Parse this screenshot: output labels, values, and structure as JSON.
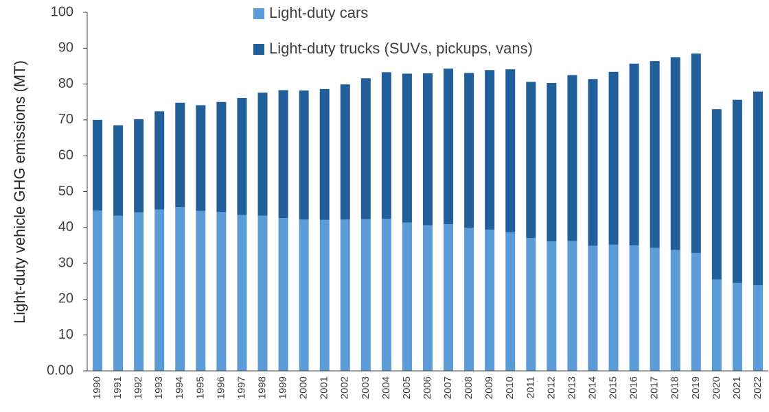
{
  "chart_data": {
    "type": "stacked_bar",
    "y_label": "Light-duty vehicle GHG emissions (MT)",
    "categories": [
      "1990",
      "1991",
      "1992",
      "1993",
      "1994",
      "1995",
      "1996",
      "1997",
      "1998",
      "1999",
      "2000",
      "2001",
      "2002",
      "2003",
      "2004",
      "2005",
      "2006",
      "2007",
      "2008",
      "2009",
      "2010",
      "2011",
      "2012",
      "2013",
      "2014",
      "2015",
      "2016",
      "2017",
      "2018",
      "2019",
      "2020",
      "2021",
      "2022"
    ],
    "series": [
      {
        "name": "Light-duty cars",
        "color": "#5b9bd8",
        "values": [
          44.7,
          43.3,
          44.2,
          45.0,
          45.7,
          44.6,
          44.3,
          43.5,
          43.3,
          42.6,
          42.2,
          42.1,
          42.2,
          42.3,
          42.4,
          41.4,
          40.6,
          40.9,
          39.9,
          39.4,
          38.6,
          37.1,
          36.1,
          36.2,
          34.9,
          35.2,
          35.0,
          34.3,
          33.7,
          32.9,
          25.5,
          24.5,
          23.9
        ]
      },
      {
        "name": "Light-duty trucks (SUVs, pickups, vans)",
        "color": "#215f9a",
        "values": [
          25.3,
          25.2,
          26.0,
          27.4,
          29.1,
          29.5,
          30.7,
          32.6,
          34.3,
          35.7,
          36.0,
          36.5,
          37.7,
          39.3,
          40.9,
          41.5,
          42.4,
          43.4,
          43.2,
          44.5,
          45.5,
          43.5,
          44.2,
          46.3,
          46.5,
          48.2,
          50.7,
          52.1,
          53.8,
          55.6,
          47.5,
          51.1,
          54.0
        ]
      }
    ],
    "ylim": [
      0,
      100
    ],
    "yticks": [
      {
        "value": 0,
        "label": "0.00"
      },
      10,
      20,
      30,
      40,
      50,
      60,
      70,
      80,
      90,
      100
    ],
    "grid": false
  }
}
